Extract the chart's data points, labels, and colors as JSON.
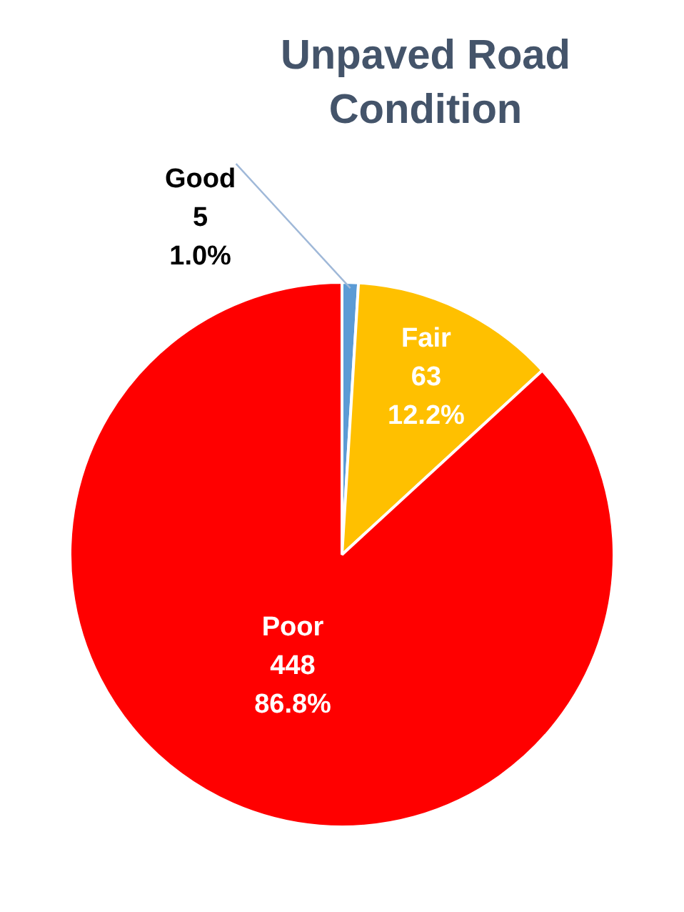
{
  "chart_data": {
    "type": "pie",
    "title": "Unpaved Road Condition",
    "categories": [
      "Good",
      "Fair",
      "Poor"
    ],
    "values": [
      5,
      63,
      448
    ],
    "colors": [
      "#5b9bd5",
      "#ffc000",
      "#ff0000"
    ],
    "value_labels": [
      "5\n1.0%",
      "63\n12.2%",
      "448\n86.8%"
    ]
  }
}
